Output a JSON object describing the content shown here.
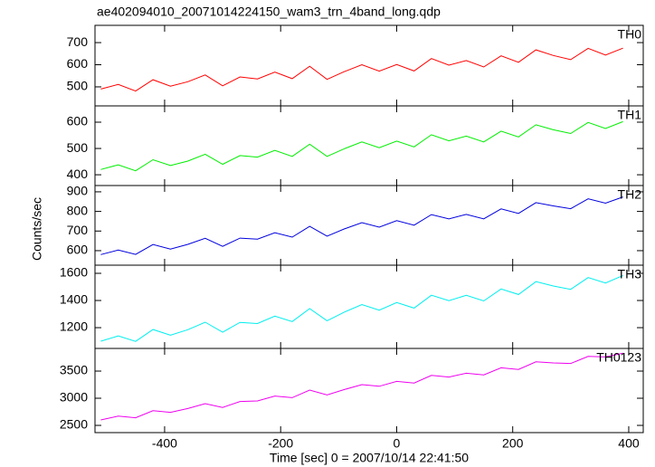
{
  "chart_data": [
    {
      "type": "line",
      "title": "ae402094010_20071014224150_wam3_trn_4band_long.qdp",
      "x": [
        -510,
        -480,
        -450,
        -420,
        -390,
        -360,
        -330,
        -300,
        -270,
        -240,
        -210,
        -180,
        -150,
        -120,
        -90,
        -60,
        -30,
        0,
        30,
        60,
        90,
        120,
        150,
        180,
        210,
        240,
        270,
        300,
        330,
        360,
        390
      ],
      "series": [
        {
          "name": "TH0",
          "color": "#ff0000",
          "values": [
            490,
            511,
            481,
            532,
            503,
            523,
            554,
            505,
            545,
            536,
            567,
            537,
            593,
            534,
            569,
            600,
            571,
            601,
            572,
            628,
            598,
            619,
            590,
            640,
            611,
            667,
            642,
            623,
            674,
            644,
            675
          ]
        }
      ],
      "xlim": [
        -520,
        425
      ],
      "ylim": [
        414,
        778
      ],
      "yticks": [
        500,
        600,
        700
      ]
    },
    {
      "type": "line",
      "x": [
        -510,
        -480,
        -450,
        -420,
        -390,
        -360,
        -330,
        -300,
        -270,
        -240,
        -210,
        -180,
        -150,
        -120,
        -90,
        -60,
        -30,
        0,
        30,
        60,
        90,
        120,
        150,
        180,
        210,
        240,
        270,
        300,
        330,
        360,
        390
      ],
      "series": [
        {
          "name": "TH1",
          "color": "#00ee00",
          "values": [
            420,
            438,
            415,
            457,
            435,
            452,
            478,
            440,
            473,
            467,
            493,
            470,
            516,
            470,
            499,
            525,
            503,
            528,
            506,
            552,
            529,
            547,
            525,
            566,
            544,
            590,
            571,
            557,
            599,
            576,
            602
          ]
        }
      ],
      "xlim": [
        -520,
        425
      ],
      "ylim": [
        359,
        662
      ],
      "yticks": [
        400,
        500,
        600
      ]
    },
    {
      "type": "line",
      "ylabel": "Counts/sec",
      "x": [
        -510,
        -480,
        -450,
        -420,
        -390,
        -360,
        -330,
        -300,
        -270,
        -240,
        -210,
        -180,
        -150,
        -120,
        -90,
        -60,
        -30,
        0,
        30,
        60,
        90,
        120,
        150,
        180,
        210,
        240,
        270,
        300,
        330,
        360,
        390
      ],
      "series": [
        {
          "name": "TH2",
          "color": "#0000dd",
          "values": [
            580,
            603,
            581,
            631,
            608,
            632,
            663,
            622,
            664,
            659,
            691,
            669,
            724,
            674,
            711,
            743,
            720,
            753,
            730,
            784,
            762,
            785,
            762,
            813,
            790,
            845,
            828,
            814,
            864,
            842,
            874
          ]
        }
      ],
      "xlim": [
        -520,
        425
      ],
      "ylim": [
        526,
        932
      ],
      "yticks": [
        600,
        700,
        800,
        900
      ]
    },
    {
      "type": "line",
      "x": [
        -510,
        -480,
        -450,
        -420,
        -390,
        -360,
        -330,
        -300,
        -270,
        -240,
        -210,
        -180,
        -150,
        -120,
        -90,
        -60,
        -30,
        0,
        30,
        60,
        90,
        120,
        150,
        180,
        210,
        240,
        270,
        300,
        330,
        360,
        390
      ],
      "series": [
        {
          "name": "TH3",
          "color": "#00eeee",
          "values": [
            1100,
            1139,
            1099,
            1186,
            1145,
            1185,
            1240,
            1167,
            1239,
            1230,
            1285,
            1245,
            1340,
            1251,
            1315,
            1370,
            1329,
            1385,
            1344,
            1439,
            1399,
            1438,
            1397,
            1485,
            1444,
            1539,
            1507,
            1482,
            1569,
            1529,
            1584
          ]
        }
      ],
      "xlim": [
        -520,
        425
      ],
      "ylim": [
        1047,
        1660
      ],
      "yticks": [
        1200,
        1400,
        1600
      ]
    },
    {
      "type": "line",
      "xlabel": "Time [sec] 0 = 2007/10/14 22:41:50",
      "x": [
        -510,
        -480,
        -450,
        -420,
        -390,
        -360,
        -330,
        -300,
        -270,
        -240,
        -210,
        -180,
        -150,
        -120,
        -90,
        -60,
        -30,
        0,
        30,
        60,
        90,
        120,
        150,
        180,
        210,
        240,
        270,
        300,
        330,
        360,
        390
      ],
      "series": [
        {
          "name": "TH0123",
          "color": "#ee00ee",
          "values": [
            2600,
            2670,
            2640,
            2770,
            2740,
            2810,
            2900,
            2830,
            2940,
            2950,
            3040,
            3010,
            3150,
            3060,
            3160,
            3250,
            3220,
            3310,
            3280,
            3420,
            3390,
            3460,
            3430,
            3560,
            3530,
            3670,
            3650,
            3640,
            3770,
            3760,
            3830
          ]
        }
      ],
      "xlim": [
        -520,
        425
      ],
      "ylim": [
        2367,
        3917
      ],
      "yticks": [
        2500,
        3000,
        3500
      ],
      "xticks": [
        -400,
        -200,
        0,
        200,
        400
      ]
    }
  ]
}
